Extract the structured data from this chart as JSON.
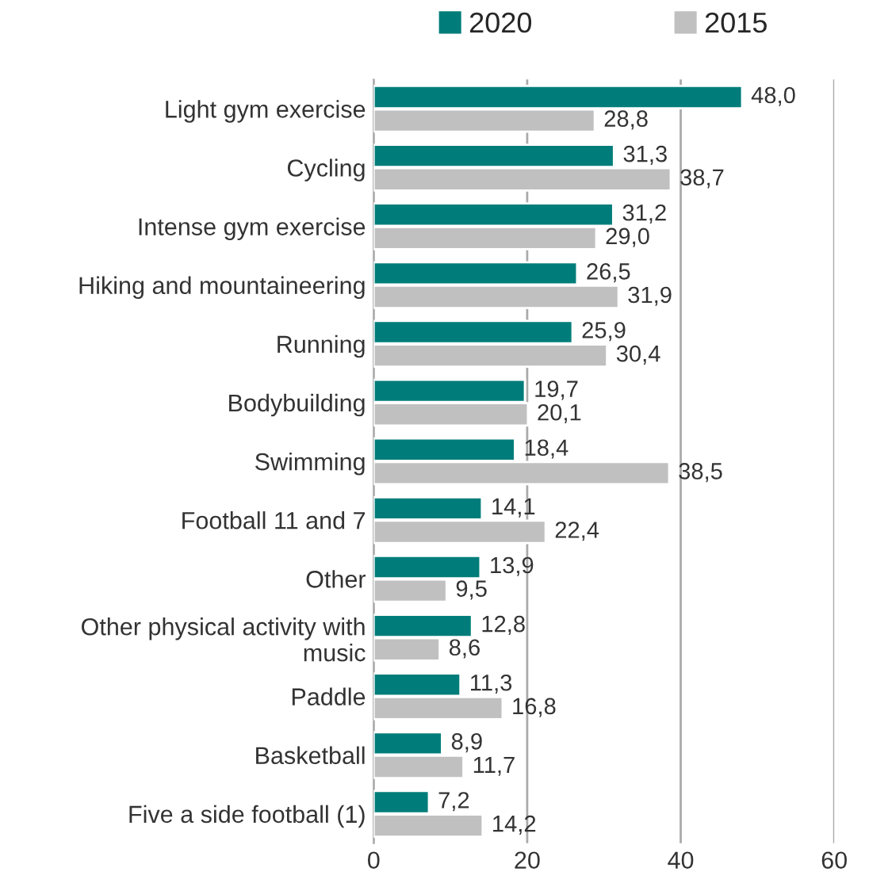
{
  "chart_data": {
    "type": "bar",
    "orientation": "horizontal",
    "categories": [
      "Light gym exercise",
      "Cycling",
      "Intense gym exercise",
      "Hiking and mountaineering",
      "Running",
      "Bodybuilding",
      "Swimming",
      "Football 11 and 7",
      "Other",
      "Other physical activity with music",
      "Paddle",
      "Basketball",
      "Five a side football (1)"
    ],
    "series": [
      {
        "name": "2020",
        "color": "#007d7a",
        "values": [
          48.0,
          31.3,
          31.2,
          26.5,
          25.9,
          19.7,
          18.4,
          14.1,
          13.9,
          12.8,
          11.3,
          8.9,
          7.2
        ],
        "value_labels": [
          "48,0",
          "31,3",
          "31,2",
          "26,5",
          "25,9",
          "19,7",
          "18,4",
          "14,1",
          "13,9",
          "12,8",
          "11,3",
          "8,9",
          "7,2"
        ]
      },
      {
        "name": "2015",
        "color": "#c0c0c0",
        "values": [
          28.8,
          38.7,
          29.0,
          31.9,
          30.4,
          20.1,
          38.5,
          22.4,
          9.5,
          8.6,
          16.8,
          11.7,
          14.2
        ],
        "value_labels": [
          "28,8",
          "38,7",
          "29,0",
          "31,9",
          "30,4",
          "20,1",
          "38,5",
          "22,4",
          "9,5",
          "8,6",
          "16,8",
          "11,7",
          "14,2"
        ]
      }
    ],
    "xlim": [
      0,
      60
    ],
    "xticks": [
      0,
      20,
      40,
      60
    ],
    "grid": "x",
    "legend": "top"
  }
}
